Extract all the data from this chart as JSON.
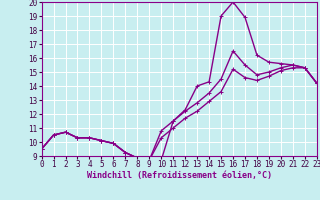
{
  "title": "",
  "xlabel": "Windchill (Refroidissement éolien,°C)",
  "bg_color": "#c8eef0",
  "grid_color": "#ffffff",
  "line_color": "#880088",
  "xlim": [
    0,
    23
  ],
  "ylim": [
    9,
    20
  ],
  "xticks": [
    0,
    1,
    2,
    3,
    4,
    5,
    6,
    7,
    8,
    9,
    10,
    11,
    12,
    13,
    14,
    15,
    16,
    17,
    18,
    19,
    20,
    21,
    22,
    23
  ],
  "yticks": [
    9,
    10,
    11,
    12,
    13,
    14,
    15,
    16,
    17,
    18,
    19,
    20
  ],
  "line1_x": [
    0,
    1,
    2,
    3,
    4,
    5,
    6,
    7,
    8,
    9,
    10,
    11,
    12,
    13,
    14,
    15,
    16,
    17,
    18,
    19,
    20,
    21,
    22,
    23
  ],
  "line1_y": [
    9.5,
    10.5,
    10.7,
    10.3,
    10.3,
    10.1,
    9.9,
    9.25,
    8.85,
    8.7,
    8.7,
    11.5,
    12.3,
    14.0,
    14.3,
    19.0,
    20.0,
    18.9,
    16.2,
    15.7,
    15.6,
    15.5,
    15.3,
    14.2
  ],
  "line2_x": [
    0,
    1,
    2,
    3,
    4,
    5,
    6,
    7,
    8,
    9,
    10,
    11,
    12,
    13,
    14,
    15,
    16,
    17,
    18,
    19,
    20,
    21,
    22,
    23
  ],
  "line2_y": [
    9.5,
    10.5,
    10.7,
    10.3,
    10.3,
    10.1,
    9.9,
    9.25,
    8.85,
    8.7,
    10.8,
    11.5,
    12.2,
    12.8,
    13.5,
    14.5,
    16.5,
    15.5,
    14.8,
    15.0,
    15.3,
    15.5,
    15.3,
    14.2
  ],
  "line3_x": [
    0,
    1,
    2,
    3,
    4,
    5,
    6,
    7,
    8,
    9,
    10,
    11,
    12,
    13,
    14,
    15,
    16,
    17,
    18,
    19,
    20,
    21,
    22,
    23
  ],
  "line3_y": [
    9.5,
    10.5,
    10.7,
    10.3,
    10.3,
    10.1,
    9.9,
    9.25,
    8.85,
    8.7,
    10.3,
    11.0,
    11.7,
    12.2,
    12.9,
    13.6,
    15.2,
    14.6,
    14.4,
    14.7,
    15.1,
    15.3,
    15.3,
    14.2
  ],
  "linewidth": 1.0,
  "markersize": 3.5,
  "xlabel_fontsize": 6.0,
  "tick_fontsize": 5.5
}
